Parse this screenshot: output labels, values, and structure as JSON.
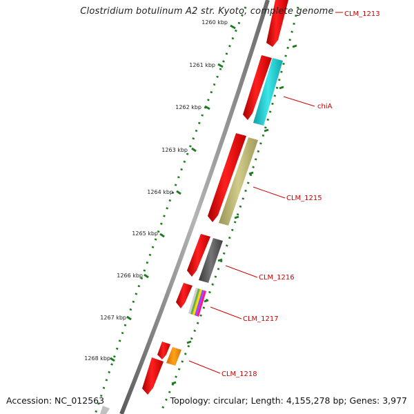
{
  "title": "Clostridium botulinum A2 str. Kyoto, complete genome",
  "accession": "Accession: NC_012563",
  "summary": "Topology: circular; Length: 4,155,278 bp; Genes: 3,977",
  "colors": {
    "backbone": "#8a8a8a",
    "tick": "#1e7a1e",
    "label": "#cc0000",
    "forward_gene": "#ff0000"
  },
  "scale_labels": [
    "1260 kbp",
    "1261 kbp",
    "1262 kbp",
    "1263 kbp",
    "1264 kbp",
    "1265 kbp",
    "1266 kbp",
    "1267 kbp",
    "1268 kbp"
  ],
  "gene_labels": [
    "CLM_1213",
    "chiA",
    "CLM_1215",
    "CLM_1216",
    "CLM_1217",
    "CLM_1218"
  ],
  "feature_colors": {
    "chiA": "#19c8cc",
    "CLM_1215": "#bdb76b",
    "CLM_1216": "#555555",
    "CLM_1217": [
      "#cfcfcf",
      "#6ab04c",
      "#ffd700",
      "#8a4fff",
      "#ff1493"
    ],
    "CLM_1218": "#ff8c00",
    "bottom_grey": "#c0c0c0"
  }
}
